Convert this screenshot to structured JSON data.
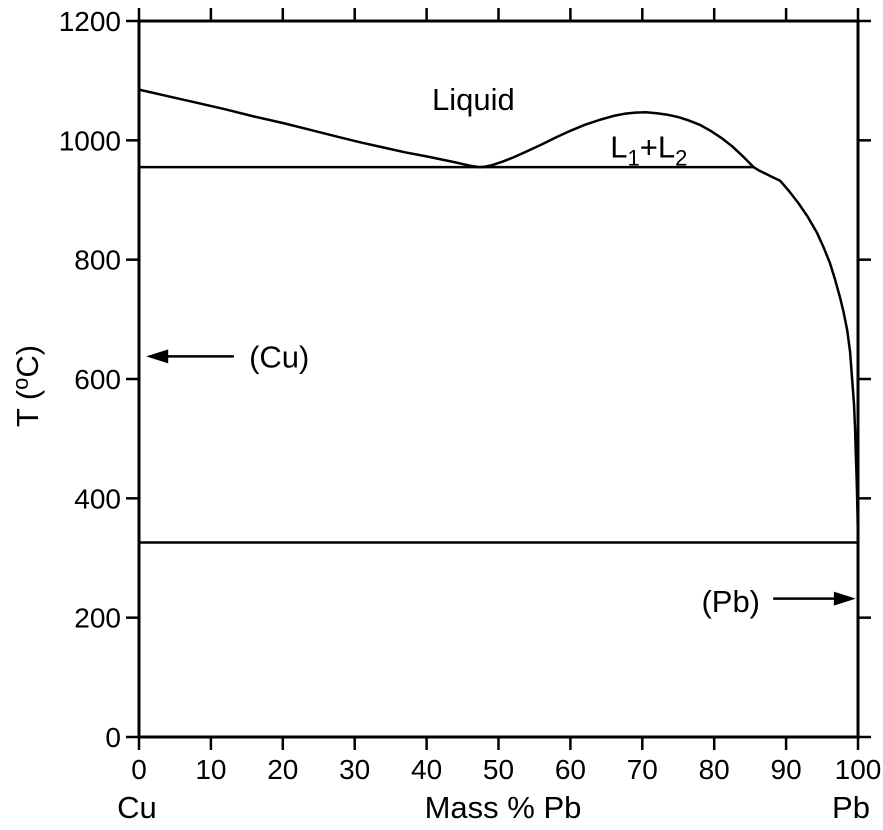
{
  "figure": {
    "background": "#ffffff",
    "line_color": "#000000"
  },
  "chart_data": {
    "type": "line",
    "title": "",
    "xlabel": "Mass % Pb",
    "ylabel": "T (oC)",
    "ylabel_parts": [
      {
        "t": "T ("
      },
      {
        "t": "o",
        "sup": true
      },
      {
        "t": "C)"
      }
    ],
    "x_endpoint_labels": {
      "left": "Cu",
      "right": "Pb"
    },
    "xlim": [
      0,
      100
    ],
    "ylim": [
      0,
      1200
    ],
    "x_ticks": [
      0,
      10,
      20,
      30,
      40,
      50,
      60,
      70,
      80,
      90,
      100
    ],
    "y_ticks": [
      0,
      200,
      400,
      600,
      800,
      1000,
      1200
    ],
    "grid": false,
    "series": [
      {
        "name": "liquidus",
        "points": [
          [
            0,
            1085
          ],
          [
            4,
            1074
          ],
          [
            8,
            1063
          ],
          [
            12,
            1052
          ],
          [
            16,
            1040
          ],
          [
            20,
            1029
          ],
          [
            24,
            1017
          ],
          [
            28,
            1005
          ],
          [
            31,
            996
          ],
          [
            34,
            988
          ],
          [
            37,
            980
          ],
          [
            40,
            973
          ],
          [
            42,
            968
          ],
          [
            44,
            963
          ],
          [
            45.5,
            959
          ],
          [
            46.5,
            956.5
          ],
          [
            47.3,
            955.2
          ],
          [
            48,
            955.6
          ],
          [
            49,
            958
          ],
          [
            50.5,
            964
          ],
          [
            52,
            971
          ],
          [
            54,
            982
          ],
          [
            56,
            993
          ],
          [
            58,
            1005
          ],
          [
            60,
            1016
          ],
          [
            62,
            1026
          ],
          [
            64,
            1034
          ],
          [
            66,
            1041
          ],
          [
            67.5,
            1044.5
          ],
          [
            69,
            1046.5
          ],
          [
            70.5,
            1047
          ],
          [
            72,
            1045.5
          ],
          [
            73.5,
            1043
          ],
          [
            75,
            1039
          ],
          [
            76.5,
            1033
          ],
          [
            78,
            1026
          ],
          [
            79.5,
            1016
          ],
          [
            81,
            1004
          ],
          [
            82.5,
            990
          ],
          [
            84,
            973
          ],
          [
            85.5,
            955
          ],
          [
            86.3,
            949
          ],
          [
            87,
            945
          ],
          [
            88,
            939
          ],
          [
            89.2,
            932
          ],
          [
            90.4,
            915
          ],
          [
            91.7,
            895
          ],
          [
            93,
            872
          ],
          [
            94.3,
            845
          ],
          [
            95.2,
            821
          ],
          [
            96.1,
            794
          ],
          [
            96.8,
            767
          ],
          [
            97.5,
            737
          ],
          [
            98,
            712
          ],
          [
            98.5,
            682
          ],
          [
            98.9,
            645
          ],
          [
            99.2,
            598
          ],
          [
            99.45,
            558
          ],
          [
            99.6,
            515
          ],
          [
            99.7,
            475
          ],
          [
            99.8,
            435
          ],
          [
            99.87,
            403
          ],
          [
            99.93,
            375
          ],
          [
            100,
            328
          ]
        ]
      },
      {
        "name": "monotectic-tie-line",
        "temperature": 955,
        "x_range": [
          0,
          85.5
        ]
      },
      {
        "name": "eutectic-tie-line",
        "temperature": 326,
        "x_range": [
          0,
          100
        ]
      }
    ],
    "region_labels": {
      "liquid": {
        "text": "Liquid",
        "x": 46.5,
        "T": 1069
      },
      "l1_l2": {
        "text": "L1+L2",
        "parts": [
          {
            "t": "L"
          },
          {
            "t": "1",
            "sub": true
          },
          {
            "t": "+"
          },
          {
            "t": "L"
          },
          {
            "t": "2",
            "sub": true
          }
        ],
        "x": 70.9,
        "T": 990
      }
    },
    "phase_arrows": {
      "cu": {
        "text": "(Cu)",
        "text_x": 19.5,
        "text_T": 638,
        "arrow": {
          "x_from": 13.2,
          "x_to": 1.0,
          "T": 638,
          "dir": "left"
        }
      },
      "pb": {
        "text": "(Pb)",
        "text_x": 82.3,
        "text_T": 228,
        "arrow": {
          "x_from": 88.2,
          "x_to": 99.7,
          "T": 232,
          "dir": "right"
        }
      }
    }
  }
}
